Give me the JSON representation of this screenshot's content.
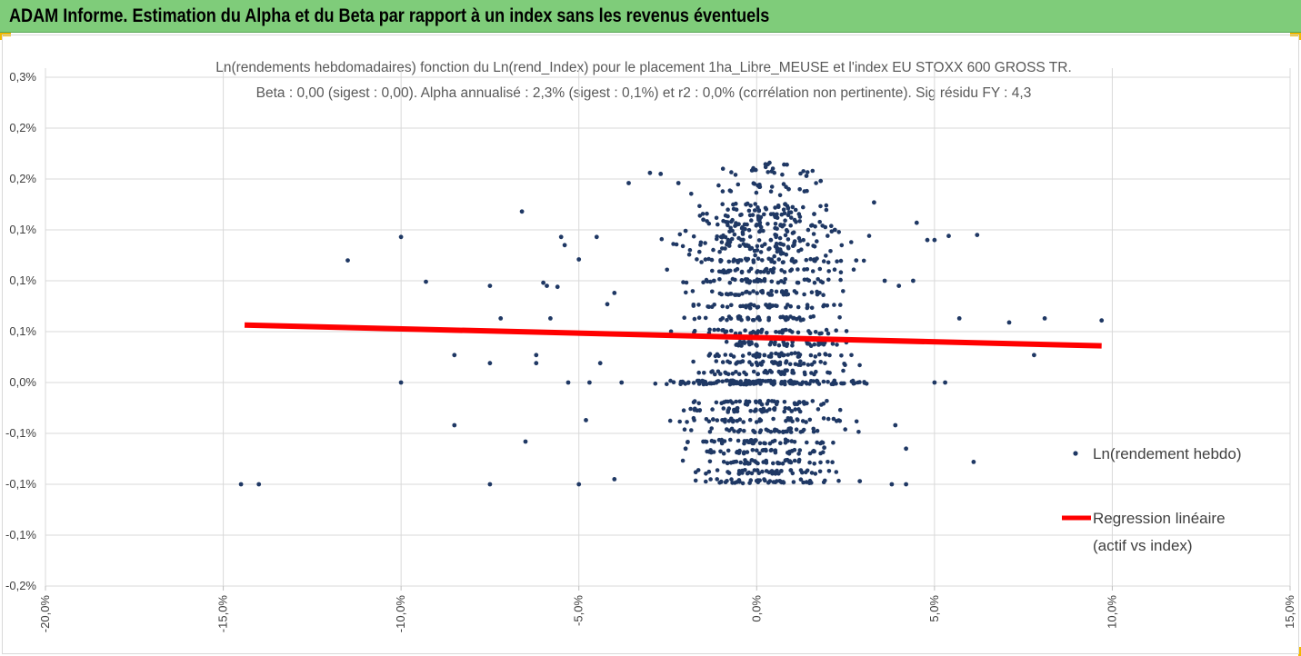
{
  "banner": {
    "title": "ADAM Informe. Estimation du Alpha et du Beta par rapport à un index sans les revenus éventuels",
    "background": "#7fcc7a"
  },
  "chart_data": {
    "type": "scatter",
    "title": "Ln(rendements hebdomadaires) fonction du Ln(rend_Index) pour le placement 1ha_Libre_MEUSE et l'index EU STOXX 600 GROSS TR.",
    "subtitle": "Beta : 0,00 (sigest : 0,00). Alpha annualisé : 2,3% (sigest : 0,1%) et r2 : 0,0% (corrélation non pertinente). Sig résidu FY : 4,3",
    "xlabel": "",
    "ylabel": "",
    "xlim": [
      -20,
      15
    ],
    "ylim": [
      -0.2,
      0.3
    ],
    "x_tick_values": [
      -20,
      -15,
      -10,
      -5,
      0,
      5,
      10,
      15
    ],
    "x_tick_labels": [
      "-20,0%",
      "-15,0%",
      "-10,0%",
      "-5,0%",
      "0,0%",
      "5,0%",
      "10,0%",
      "15,0%"
    ],
    "y_tick_values": [
      0.3,
      0.25,
      0.2,
      0.15,
      0.1,
      0.05,
      0.0,
      -0.05,
      -0.1,
      -0.15,
      -0.2
    ],
    "y_tick_labels": [
      "0,3%",
      "0,2%",
      "0,2%",
      "0,1%",
      "0,1%",
      "0,1%",
      "0,0%",
      "-0,1%",
      "-0,1%",
      "-0,1%",
      "-0,2%"
    ],
    "grid": true,
    "legend_position": "right",
    "series": [
      {
        "name": "Ln(rendement hebdo)",
        "kind": "scatter",
        "color": "#1f3864",
        "points": [
          [
            -14.5,
            -0.1
          ],
          [
            -14.0,
            -0.1
          ],
          [
            -11.5,
            0.12
          ],
          [
            -10.0,
            0.143
          ],
          [
            -10.0,
            0.0
          ],
          [
            -9.3,
            0.099
          ],
          [
            -8.5,
            0.027
          ],
          [
            -8.5,
            -0.042
          ],
          [
            -7.5,
            0.095
          ],
          [
            -7.5,
            0.019
          ],
          [
            -7.5,
            -0.1
          ],
          [
            -7.2,
            0.063
          ],
          [
            -6.6,
            0.168
          ],
          [
            -6.5,
            -0.058
          ],
          [
            -6.2,
            0.019
          ],
          [
            -6.0,
            0.098
          ],
          [
            -5.8,
            0.063
          ],
          [
            -6.2,
            0.027
          ],
          [
            -5.9,
            0.095
          ],
          [
            -5.6,
            0.094
          ],
          [
            -5.5,
            0.143
          ],
          [
            -5.4,
            0.135
          ],
          [
            -5.3,
            0.0
          ],
          [
            -5.0,
            0.121
          ],
          [
            -4.8,
            -0.037
          ],
          [
            -4.7,
            0.0
          ],
          [
            -4.5,
            0.143
          ],
          [
            -4.4,
            0.019
          ],
          [
            -4.2,
            0.077
          ],
          [
            -4.0,
            0.088
          ],
          [
            -3.6,
            0.196
          ],
          [
            -3.8,
            0.0
          ],
          [
            -3.0,
            0.206
          ],
          [
            -2.7,
            0.205
          ],
          [
            -2.2,
            0.196
          ],
          [
            -2.0,
            0.149
          ],
          [
            -1.5,
            0.16
          ],
          [
            -1.2,
            0.1
          ],
          [
            -0.8,
            0.14
          ],
          [
            -0.3,
            0.175
          ],
          [
            0.0,
            0.155
          ],
          [
            0.4,
            0.14
          ],
          [
            0.9,
            0.19
          ],
          [
            1.4,
            0.203
          ],
          [
            1.8,
            0.198
          ],
          [
            2.2,
            0.15
          ],
          [
            2.8,
            0.12
          ],
          [
            3.3,
            0.177
          ],
          [
            3.6,
            0.1
          ],
          [
            4.0,
            0.095
          ],
          [
            4.4,
            0.1
          ],
          [
            4.5,
            0.157
          ],
          [
            4.8,
            0.14
          ],
          [
            5.0,
            0.14
          ],
          [
            5.4,
            0.144
          ],
          [
            6.2,
            0.145
          ],
          [
            5.7,
            0.063
          ],
          [
            7.1,
            0.059
          ],
          [
            8.1,
            0.063
          ],
          [
            9.7,
            0.061
          ],
          [
            7.8,
            0.027
          ],
          [
            5.3,
            0.0
          ],
          [
            5.0,
            0.0
          ],
          [
            4.2,
            -0.065
          ],
          [
            3.9,
            -0.042
          ],
          [
            6.1,
            -0.078
          ],
          [
            4.2,
            -0.1
          ],
          [
            3.8,
            -0.1
          ],
          [
            2.9,
            -0.097
          ],
          [
            -4.0,
            -0.095
          ],
          [
            -5.0,
            -0.1
          ],
          [
            -2.0,
            -0.065
          ],
          [
            -1.5,
            -0.058
          ],
          [
            1.9,
            -0.064
          ]
        ]
      },
      {
        "name": "Regression linéaire (actif vs index)",
        "kind": "line",
        "color": "#ff0000",
        "line": [
          [
            -14.4,
            0.0565
          ],
          [
            9.7,
            0.036
          ]
        ]
      }
    ],
    "legend": [
      {
        "label": "Ln(rendement hebdo)"
      },
      {
        "label_line1": "Regression linéaire",
        "label_line2": "(actif vs index)"
      }
    ]
  }
}
